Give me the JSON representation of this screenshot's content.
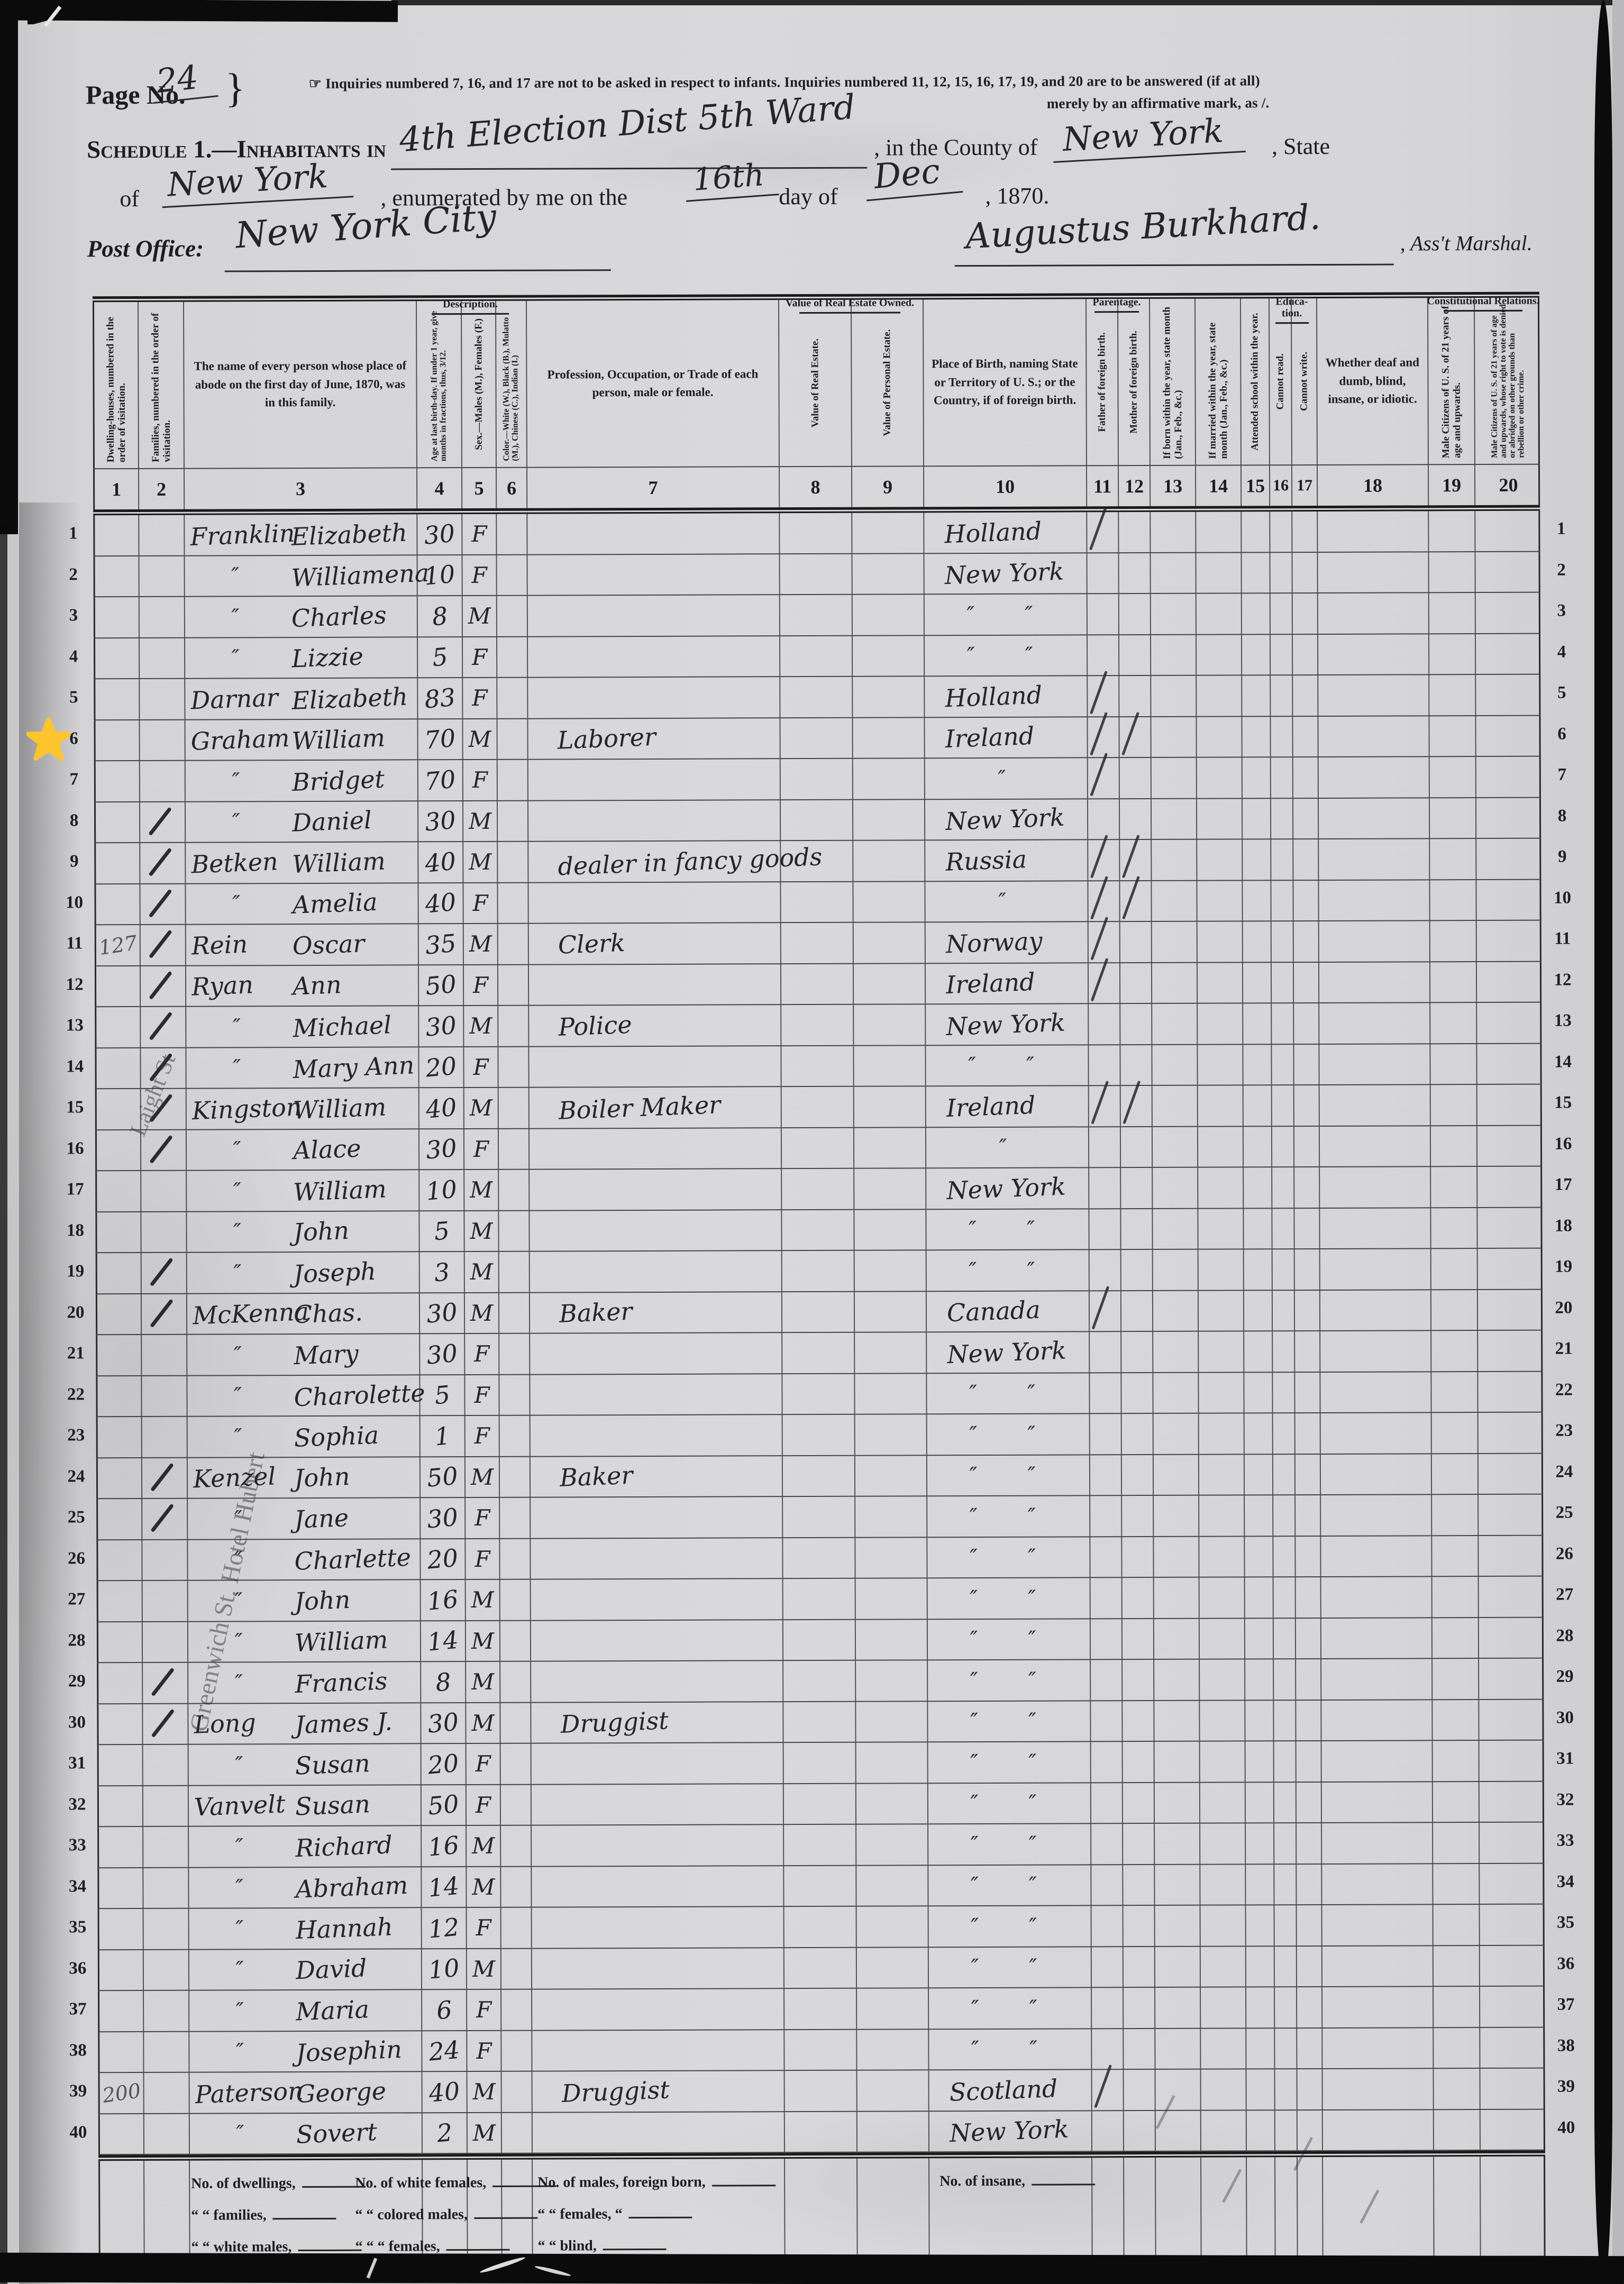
{
  "colors": {
    "paper": "#d6d6d8",
    "ink": "#24252b",
    "print": "#1d1d1f",
    "star_yellow": "#ffc52e"
  },
  "header": {
    "page_no_label": "Page No.",
    "page_no_value": "24",
    "brace": "}",
    "note_line1": "☞ Inquiries numbered 7, 16, and 17 are not to be asked in respect to infants.   Inquiries numbered 11, 12, 15, 16, 17, 19, and 20 are to be answered (if at all)",
    "note_line2": "merely by an affirmative mark, as /.",
    "schedule_prefix": "Schedule 1.—Inhabitants in",
    "district_value": "4th Election Dist 5th Ward",
    "county_label": ", in the County of",
    "county_value": "New York",
    "state_label": ", State",
    "of_label": "of",
    "state_value": "New York",
    "enumerated_label": ", enumerated by me on the",
    "day_value": "16th",
    "day_of_label": "day of",
    "month_value": "Dec",
    "year_label": ", 1870.",
    "post_office_label": "Post Office:",
    "post_office_value": "New York City",
    "marshal_signature": "Augustus Burkhard.",
    "marshal_label": ", Ass't Marshal."
  },
  "annotations": {
    "star_marker": "star",
    "margin_note_upper": "Laight St",
    "margin_note_lower": "Greenwich St.  Hotel Hubert"
  },
  "table": {
    "group_headers": [
      {
        "label": "Description."
      },
      {
        "label": "Value of Real Estate Owned."
      },
      {
        "label": "Parentage."
      },
      {
        "label": "Educa-tion."
      },
      {
        "label": "Constitutional Relations."
      }
    ],
    "columns": [
      {
        "num": "1",
        "title": "Dwelling-houses, numbered in the order of visitation.",
        "orient": "v"
      },
      {
        "num": "2",
        "title": "Families, numbered in the order of visitation.",
        "orient": "v"
      },
      {
        "num": "3",
        "title": "The name of every person whose place of abode on the first day of June, 1870, was in this family.",
        "orient": "h"
      },
      {
        "num": "4",
        "title": "Age at last birth-day. If under 1 year, give months in fractions, thus, 3/12.",
        "orient": "v"
      },
      {
        "num": "5",
        "title": "Sex.—Males (M.), Females (F.)",
        "orient": "v"
      },
      {
        "num": "6",
        "title": "Color.—White (W.), Black (B.), Mulatto (M.), Chinese (C.), Indian (I.)",
        "orient": "v"
      },
      {
        "num": "7",
        "title": "Profession, Occupation, or Trade of each person, male or female.",
        "orient": "h"
      },
      {
        "num": "8",
        "title": "Value of Real Estate.",
        "orient": "v"
      },
      {
        "num": "9",
        "title": "Value of Personal Estate.",
        "orient": "v"
      },
      {
        "num": "10",
        "title": "Place of Birth, naming State or Territory of U. S.; or the Country, if of foreign birth.",
        "orient": "h"
      },
      {
        "num": "11",
        "title": "Father of foreign birth.",
        "orient": "v"
      },
      {
        "num": "12",
        "title": "Mother of foreign birth.",
        "orient": "v"
      },
      {
        "num": "13",
        "title": "If born within the year, state month (Jan., Feb., &c.)",
        "orient": "v"
      },
      {
        "num": "14",
        "title": "If married within the year, state month (Jan., Feb., &c.)",
        "orient": "v"
      },
      {
        "num": "15",
        "title": "Attended school within the year.",
        "orient": "v"
      },
      {
        "num": "16",
        "title": "Cannot read.",
        "orient": "v"
      },
      {
        "num": "17",
        "title": "Cannot write.",
        "orient": "v"
      },
      {
        "num": "18",
        "title": "Whether deaf and dumb, blind, insane, or idiotic.",
        "orient": "h"
      },
      {
        "num": "19",
        "title": "Male Citizens of U. S. of 21 years of age and upwards.",
        "orient": "v"
      },
      {
        "num": "20",
        "title": "Male Citizens of U. S. of 21 years of age and upwards, whose right to vote is denied or abridged on other grounds than rebellion or other crime.",
        "orient": "v"
      }
    ],
    "rows": [
      {
        "n": 1,
        "dw": "",
        "sur": "Franklin",
        "giv": "Elizabeth",
        "age": "30",
        "sex": "F",
        "occ": "",
        "bp": "Holland",
        "bd": 0,
        "ff": 1,
        "mf": 0,
        "tick": 0
      },
      {
        "n": 2,
        "dw": "",
        "sur": "",
        "giv": "Williamena",
        "age": "10",
        "sex": "F",
        "occ": "",
        "bp": "New York",
        "bd": 0,
        "ff": 0,
        "mf": 0,
        "tick": 0
      },
      {
        "n": 3,
        "dw": "",
        "sur": "",
        "giv": "Charles",
        "age": "8",
        "sex": "M",
        "occ": "",
        "bp": "",
        "bd": 2,
        "ff": 0,
        "mf": 0,
        "tick": 0
      },
      {
        "n": 4,
        "dw": "",
        "sur": "",
        "giv": "Lizzie",
        "age": "5",
        "sex": "F",
        "occ": "",
        "bp": "",
        "bd": 2,
        "ff": 0,
        "mf": 0,
        "tick": 0
      },
      {
        "n": 5,
        "dw": "",
        "sur": "Darnar",
        "giv": "Elizabeth",
        "age": "83",
        "sex": "F",
        "occ": "",
        "bp": "Holland",
        "bd": 0,
        "ff": 1,
        "mf": 0,
        "tick": 0
      },
      {
        "n": 6,
        "dw": "",
        "sur": "Graham",
        "giv": "William",
        "age": "70",
        "sex": "M",
        "occ": "Laborer",
        "bp": "Ireland",
        "bd": 0,
        "ff": 1,
        "mf": 1,
        "tick": 0
      },
      {
        "n": 7,
        "dw": "",
        "sur": "",
        "giv": "Bridget",
        "age": "70",
        "sex": "F",
        "occ": "",
        "bp": "",
        "bd": 1,
        "ff": 1,
        "mf": 0,
        "tick": 0
      },
      {
        "n": 8,
        "dw": "",
        "sur": "",
        "giv": "Daniel",
        "age": "30",
        "sex": "M",
        "occ": "",
        "bp": "New York",
        "bd": 0,
        "ff": 0,
        "mf": 0,
        "tick": 1
      },
      {
        "n": 9,
        "dw": "",
        "sur": "Betken",
        "giv": "William",
        "age": "40",
        "sex": "M",
        "occ": "dealer in fancy goods",
        "bp": "Russia",
        "bd": 0,
        "ff": 1,
        "mf": 1,
        "tick": 1
      },
      {
        "n": 10,
        "dw": "",
        "sur": "",
        "giv": "Amelia",
        "age": "40",
        "sex": "F",
        "occ": "",
        "bp": "",
        "bd": 1,
        "ff": 1,
        "mf": 1,
        "tick": 1
      },
      {
        "n": 11,
        "dw": "127",
        "sur": "Rein",
        "giv": "Oscar",
        "age": "35",
        "sex": "M",
        "occ": "Clerk",
        "bp": "Norway",
        "bd": 0,
        "ff": 1,
        "mf": 0,
        "tick": 1
      },
      {
        "n": 12,
        "dw": "",
        "sur": "Ryan",
        "giv": "Ann",
        "age": "50",
        "sex": "F",
        "occ": "",
        "bp": "Ireland",
        "bd": 0,
        "ff": 1,
        "mf": 0,
        "tick": 1
      },
      {
        "n": 13,
        "dw": "",
        "sur": "",
        "giv": "Michael",
        "age": "30",
        "sex": "M",
        "occ": "Police",
        "bp": "New York",
        "bd": 0,
        "ff": 0,
        "mf": 0,
        "tick": 1
      },
      {
        "n": 14,
        "dw": "",
        "sur": "",
        "giv": "Mary Ann",
        "age": "20",
        "sex": "F",
        "occ": "",
        "bp": "",
        "bd": 2,
        "ff": 0,
        "mf": 0,
        "tick": 1
      },
      {
        "n": 15,
        "dw": "",
        "sur": "Kingston",
        "giv": "William",
        "age": "40",
        "sex": "M",
        "occ": "Boiler Maker",
        "bp": "Ireland",
        "bd": 0,
        "ff": 1,
        "mf": 1,
        "tick": 1
      },
      {
        "n": 16,
        "dw": "",
        "sur": "",
        "giv": "Alace",
        "age": "30",
        "sex": "F",
        "occ": "",
        "bp": "",
        "bd": 1,
        "ff": 0,
        "mf": 0,
        "tick": 1
      },
      {
        "n": 17,
        "dw": "",
        "sur": "",
        "giv": "William",
        "age": "10",
        "sex": "M",
        "occ": "",
        "bp": "New York",
        "bd": 0,
        "ff": 0,
        "mf": 0,
        "tick": 0
      },
      {
        "n": 18,
        "dw": "",
        "sur": "",
        "giv": "John",
        "age": "5",
        "sex": "M",
        "occ": "",
        "bp": "",
        "bd": 2,
        "ff": 0,
        "mf": 0,
        "tick": 0
      },
      {
        "n": 19,
        "dw": "",
        "sur": "",
        "giv": "Joseph",
        "age": "3",
        "sex": "M",
        "occ": "",
        "bp": "",
        "bd": 2,
        "ff": 0,
        "mf": 0,
        "tick": 1
      },
      {
        "n": 20,
        "dw": "",
        "sur": "McKenna",
        "giv": "Chas.",
        "age": "30",
        "sex": "M",
        "occ": "Baker",
        "bp": "Canada",
        "bd": 0,
        "ff": 1,
        "mf": 0,
        "tick": 1
      },
      {
        "n": 21,
        "dw": "",
        "sur": "",
        "giv": "Mary",
        "age": "30",
        "sex": "F",
        "occ": "",
        "bp": "New York",
        "bd": 0,
        "ff": 0,
        "mf": 0,
        "tick": 0
      },
      {
        "n": 22,
        "dw": "",
        "sur": "",
        "giv": "Charolette",
        "age": "5",
        "sex": "F",
        "occ": "",
        "bp": "",
        "bd": 2,
        "ff": 0,
        "mf": 0,
        "tick": 0
      },
      {
        "n": 23,
        "dw": "",
        "sur": "",
        "giv": "Sophia",
        "age": "1",
        "sex": "F",
        "occ": "",
        "bp": "",
        "bd": 2,
        "ff": 0,
        "mf": 0,
        "tick": 0
      },
      {
        "n": 24,
        "dw": "",
        "sur": "Kenzel",
        "giv": "John",
        "age": "50",
        "sex": "M",
        "occ": "Baker",
        "bp": "",
        "bd": 2,
        "ff": 0,
        "mf": 0,
        "tick": 1
      },
      {
        "n": 25,
        "dw": "",
        "sur": "",
        "giv": "Jane",
        "age": "30",
        "sex": "F",
        "occ": "",
        "bp": "",
        "bd": 2,
        "ff": 0,
        "mf": 0,
        "tick": 1
      },
      {
        "n": 26,
        "dw": "",
        "sur": "",
        "giv": "Charlette",
        "age": "20",
        "sex": "F",
        "occ": "",
        "bp": "",
        "bd": 2,
        "ff": 0,
        "mf": 0,
        "tick": 0
      },
      {
        "n": 27,
        "dw": "",
        "sur": "",
        "giv": "John",
        "age": "16",
        "sex": "M",
        "occ": "",
        "bp": "",
        "bd": 2,
        "ff": 0,
        "mf": 0,
        "tick": 0
      },
      {
        "n": 28,
        "dw": "",
        "sur": "",
        "giv": "William",
        "age": "14",
        "sex": "M",
        "occ": "",
        "bp": "",
        "bd": 2,
        "ff": 0,
        "mf": 0,
        "tick": 0
      },
      {
        "n": 29,
        "dw": "",
        "sur": "",
        "giv": "Francis",
        "age": "8",
        "sex": "M",
        "occ": "",
        "bp": "",
        "bd": 2,
        "ff": 0,
        "mf": 0,
        "tick": 1
      },
      {
        "n": 30,
        "dw": "",
        "sur": "Long",
        "giv": "James J.",
        "age": "30",
        "sex": "M",
        "occ": "Druggist",
        "bp": "",
        "bd": 2,
        "ff": 0,
        "mf": 0,
        "tick": 1
      },
      {
        "n": 31,
        "dw": "",
        "sur": "",
        "giv": "Susan",
        "age": "20",
        "sex": "F",
        "occ": "",
        "bp": "",
        "bd": 2,
        "ff": 0,
        "mf": 0,
        "tick": 0
      },
      {
        "n": 32,
        "dw": "",
        "sur": "Vanvelt",
        "giv": "Susan",
        "age": "50",
        "sex": "F",
        "occ": "",
        "bp": "",
        "bd": 2,
        "ff": 0,
        "mf": 0,
        "tick": 0
      },
      {
        "n": 33,
        "dw": "",
        "sur": "",
        "giv": "Richard",
        "age": "16",
        "sex": "M",
        "occ": "",
        "bp": "",
        "bd": 2,
        "ff": 0,
        "mf": 0,
        "tick": 0
      },
      {
        "n": 34,
        "dw": "",
        "sur": "",
        "giv": "Abraham",
        "age": "14",
        "sex": "M",
        "occ": "",
        "bp": "",
        "bd": 2,
        "ff": 0,
        "mf": 0,
        "tick": 0
      },
      {
        "n": 35,
        "dw": "",
        "sur": "",
        "giv": "Hannah",
        "age": "12",
        "sex": "F",
        "occ": "",
        "bp": "",
        "bd": 2,
        "ff": 0,
        "mf": 0,
        "tick": 0
      },
      {
        "n": 36,
        "dw": "",
        "sur": "",
        "giv": "David",
        "age": "10",
        "sex": "M",
        "occ": "",
        "bp": "",
        "bd": 2,
        "ff": 0,
        "mf": 0,
        "tick": 0
      },
      {
        "n": 37,
        "dw": "",
        "sur": "",
        "giv": "Maria",
        "age": "6",
        "sex": "F",
        "occ": "",
        "bp": "",
        "bd": 2,
        "ff": 0,
        "mf": 0,
        "tick": 0
      },
      {
        "n": 38,
        "dw": "",
        "sur": "",
        "giv": "Josephin",
        "age": "24",
        "sex": "F",
        "occ": "",
        "bp": "",
        "bd": 2,
        "ff": 0,
        "mf": 0,
        "tick": 0
      },
      {
        "n": 39,
        "dw": "200",
        "sur": "Paterson",
        "giv": "George",
        "age": "40",
        "sex": "M",
        "occ": "Druggist",
        "bp": "Scotland",
        "bd": 0,
        "ff": 1,
        "mf": 0,
        "tick": 0
      },
      {
        "n": 40,
        "dw": "",
        "sur": "",
        "giv": "Sovert",
        "age": "2",
        "sex": "M",
        "occ": "",
        "bp": "New York",
        "bd": 0,
        "ff": 0,
        "mf": 0,
        "tick": 0
      }
    ]
  },
  "footer": {
    "col1": [
      "No. of dwellings,",
      "“  “ families,",
      "“  “ white males,"
    ],
    "col2": [
      "No. of white females,",
      "“  “ colored males,",
      "“  “  “ females,"
    ],
    "col3": [
      "No. of males, foreign born,",
      "“  “ females,  “",
      "“  “ blind,"
    ],
    "right": "No. of insane,"
  }
}
